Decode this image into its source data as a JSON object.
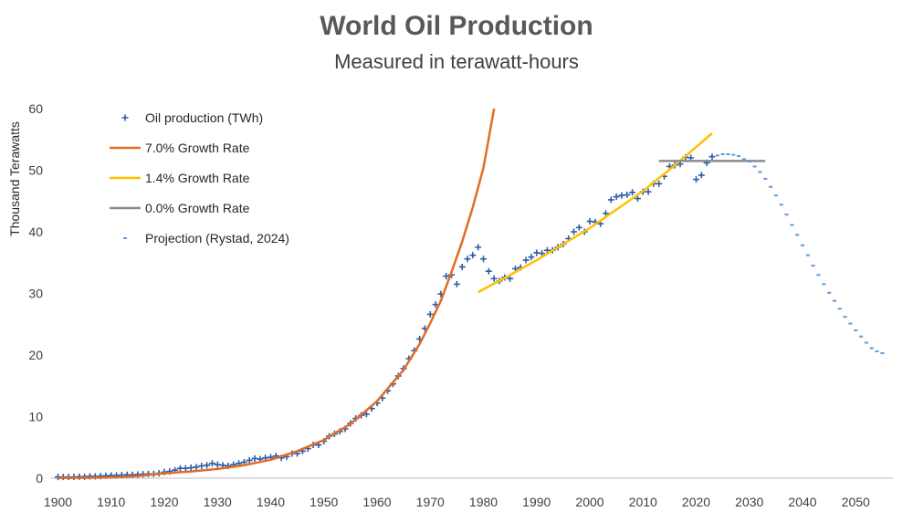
{
  "chart_data": {
    "type": "scatter",
    "title": "World Oil Production",
    "subtitle": "Measured in terawatt-hours",
    "ylabel": "Thousand Terawatts",
    "xlabel": "",
    "xlim": [
      1900,
      2055
    ],
    "ylim": [
      0,
      60
    ],
    "x_ticks": [
      1900,
      1910,
      1920,
      1930,
      1940,
      1950,
      1960,
      1970,
      1980,
      1990,
      2000,
      2010,
      2020,
      2030,
      2040,
      2050
    ],
    "y_ticks": [
      0,
      10,
      20,
      30,
      40,
      50,
      60
    ],
    "legend_position": "top-left",
    "grid": false,
    "series": [
      {
        "name": "Oil production (TWh)",
        "kind": "marker-plus",
        "color": "#2E5CA8",
        "points": [
          [
            1900,
            0.2
          ],
          [
            1901,
            0.2
          ],
          [
            1902,
            0.2
          ],
          [
            1903,
            0.2
          ],
          [
            1904,
            0.25
          ],
          [
            1905,
            0.25
          ],
          [
            1906,
            0.3
          ],
          [
            1907,
            0.3
          ],
          [
            1908,
            0.35
          ],
          [
            1909,
            0.4
          ],
          [
            1910,
            0.45
          ],
          [
            1911,
            0.45
          ],
          [
            1912,
            0.5
          ],
          [
            1913,
            0.55
          ],
          [
            1914,
            0.55
          ],
          [
            1915,
            0.6
          ],
          [
            1916,
            0.65
          ],
          [
            1917,
            0.7
          ],
          [
            1918,
            0.7
          ],
          [
            1919,
            0.8
          ],
          [
            1920,
            1.0
          ],
          [
            1921,
            1.1
          ],
          [
            1922,
            1.3
          ],
          [
            1923,
            1.6
          ],
          [
            1924,
            1.6
          ],
          [
            1925,
            1.7
          ],
          [
            1926,
            1.8
          ],
          [
            1927,
            2.0
          ],
          [
            1928,
            2.1
          ],
          [
            1929,
            2.4
          ],
          [
            1930,
            2.2
          ],
          [
            1931,
            2.1
          ],
          [
            1932,
            2.0
          ],
          [
            1933,
            2.2
          ],
          [
            1934,
            2.4
          ],
          [
            1935,
            2.6
          ],
          [
            1936,
            2.9
          ],
          [
            1937,
            3.2
          ],
          [
            1938,
            3.1
          ],
          [
            1939,
            3.3
          ],
          [
            1940,
            3.4
          ],
          [
            1941,
            3.6
          ],
          [
            1942,
            3.3
          ],
          [
            1943,
            3.5
          ],
          [
            1944,
            4.0
          ],
          [
            1945,
            4.0
          ],
          [
            1946,
            4.4
          ],
          [
            1947,
            4.8
          ],
          [
            1948,
            5.4
          ],
          [
            1949,
            5.4
          ],
          [
            1950,
            6.0
          ],
          [
            1951,
            6.8
          ],
          [
            1952,
            7.2
          ],
          [
            1953,
            7.6
          ],
          [
            1954,
            8.0
          ],
          [
            1955,
            8.9
          ],
          [
            1956,
            9.7
          ],
          [
            1957,
            10.2
          ],
          [
            1958,
            10.4
          ],
          [
            1959,
            11.3
          ],
          [
            1960,
            12.2
          ],
          [
            1961,
            13.0
          ],
          [
            1962,
            14.2
          ],
          [
            1963,
            15.3
          ],
          [
            1964,
            16.6
          ],
          [
            1965,
            17.8
          ],
          [
            1966,
            19.4
          ],
          [
            1967,
            20.7
          ],
          [
            1968,
            22.6
          ],
          [
            1969,
            24.3
          ],
          [
            1970,
            26.6
          ],
          [
            1971,
            28.2
          ],
          [
            1972,
            29.9
          ],
          [
            1973,
            32.8
          ],
          [
            1974,
            33.0
          ],
          [
            1975,
            31.5
          ],
          [
            1976,
            34.3
          ],
          [
            1977,
            35.6
          ],
          [
            1978,
            36.2
          ],
          [
            1979,
            37.5
          ],
          [
            1980,
            35.6
          ],
          [
            1981,
            33.6
          ],
          [
            1982,
            32.4
          ],
          [
            1983,
            32.0
          ],
          [
            1984,
            32.6
          ],
          [
            1985,
            32.4
          ],
          [
            1986,
            34.0
          ],
          [
            1987,
            34.2
          ],
          [
            1988,
            35.4
          ],
          [
            1989,
            35.9
          ],
          [
            1990,
            36.6
          ],
          [
            1991,
            36.5
          ],
          [
            1992,
            37.0
          ],
          [
            1993,
            37.0
          ],
          [
            1994,
            37.5
          ],
          [
            1995,
            38.0
          ],
          [
            1996,
            38.9
          ],
          [
            1997,
            40.0
          ],
          [
            1998,
            40.7
          ],
          [
            1999,
            40.0
          ],
          [
            2000,
            41.7
          ],
          [
            2001,
            41.6
          ],
          [
            2002,
            41.3
          ],
          [
            2003,
            43.0
          ],
          [
            2004,
            45.2
          ],
          [
            2005,
            45.7
          ],
          [
            2006,
            45.9
          ],
          [
            2007,
            46.0
          ],
          [
            2008,
            46.4
          ],
          [
            2009,
            45.4
          ],
          [
            2010,
            46.5
          ],
          [
            2011,
            46.5
          ],
          [
            2012,
            47.8
          ],
          [
            2013,
            47.8
          ],
          [
            2014,
            49.0
          ],
          [
            2015,
            50.6
          ],
          [
            2016,
            50.8
          ],
          [
            2017,
            51.0
          ],
          [
            2018,
            52.1
          ],
          [
            2019,
            52.0
          ],
          [
            2020,
            48.5
          ],
          [
            2021,
            49.2
          ],
          [
            2022,
            51.2
          ],
          [
            2023,
            52.2
          ]
        ]
      },
      {
        "name": "7.0% Growth Rate",
        "kind": "line",
        "color": "#E46C24",
        "points": [
          [
            1900,
            0.04
          ],
          [
            1905,
            0.06
          ],
          [
            1910,
            0.14
          ],
          [
            1915,
            0.35
          ],
          [
            1920,
            0.8
          ],
          [
            1925,
            1.1
          ],
          [
            1930,
            1.5
          ],
          [
            1935,
            2.1
          ],
          [
            1940,
            3.0
          ],
          [
            1945,
            4.4
          ],
          [
            1950,
            6.2
          ],
          [
            1955,
            8.8
          ],
          [
            1960,
            12.5
          ],
          [
            1965,
            17.6
          ],
          [
            1968,
            21.8
          ],
          [
            1970,
            25.2
          ],
          [
            1972,
            28.8
          ],
          [
            1974,
            33.5
          ],
          [
            1976,
            38.4
          ],
          [
            1978,
            44.0
          ],
          [
            1980,
            50.4
          ],
          [
            1982,
            60.0
          ]
        ]
      },
      {
        "name": "1.4% Growth Rate",
        "kind": "line",
        "color": "#FFC000",
        "points": [
          [
            1979,
            30.2
          ],
          [
            1984,
            32.5
          ],
          [
            1990,
            35.4
          ],
          [
            2000,
            40.6
          ],
          [
            2010,
            46.6
          ],
          [
            2016,
            50.8
          ],
          [
            2023,
            56.0
          ]
        ]
      },
      {
        "name": "0.0% Growth Rate",
        "kind": "line",
        "color": "#8C8C8C",
        "points": [
          [
            2013,
            51.5
          ],
          [
            2033,
            51.5
          ]
        ]
      },
      {
        "name": "Projection (Rystad, 2024)",
        "kind": "marker-dash",
        "color": "#5B9BD5",
        "points": [
          [
            2024,
            52.4
          ],
          [
            2025,
            52.6
          ],
          [
            2026,
            52.6
          ],
          [
            2027,
            52.5
          ],
          [
            2028,
            52.3
          ],
          [
            2029,
            51.8
          ],
          [
            2030,
            51.4
          ],
          [
            2031,
            50.6
          ],
          [
            2032,
            49.7
          ],
          [
            2033,
            48.6
          ],
          [
            2034,
            47.3
          ],
          [
            2035,
            45.9
          ],
          [
            2036,
            44.4
          ],
          [
            2037,
            42.8
          ],
          [
            2038,
            41.1
          ],
          [
            2039,
            39.5
          ],
          [
            2040,
            37.8
          ],
          [
            2041,
            36.2
          ],
          [
            2042,
            34.5
          ],
          [
            2043,
            33.0
          ],
          [
            2044,
            31.5
          ],
          [
            2045,
            30.1
          ],
          [
            2046,
            28.8
          ],
          [
            2047,
            27.5
          ],
          [
            2048,
            26.2
          ],
          [
            2049,
            25.1
          ],
          [
            2050,
            24.0
          ],
          [
            2051,
            23.0
          ],
          [
            2052,
            22.0
          ],
          [
            2053,
            21.1
          ],
          [
            2054,
            20.6
          ],
          [
            2055,
            20.3
          ]
        ]
      }
    ]
  }
}
